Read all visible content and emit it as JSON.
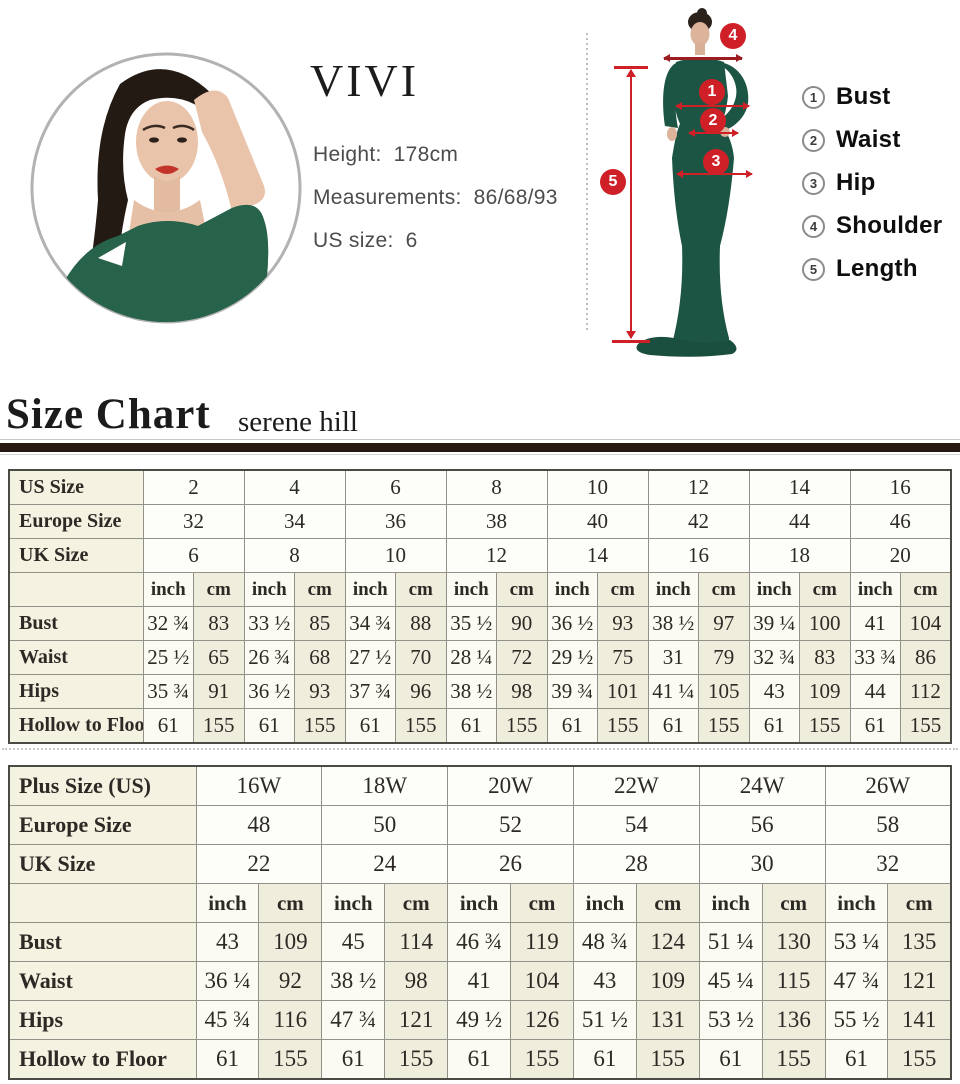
{
  "model_card": {
    "brand": "VIVI",
    "lines": [
      {
        "label": "Height:",
        "value": "178cm"
      },
      {
        "label": "Measurements:",
        "value": "86/68/93"
      },
      {
        "label": "US size:",
        "value": "6"
      }
    ]
  },
  "diagram": {
    "markers": {
      "bust": "1",
      "waist": "2",
      "hip": "3",
      "shoulder": "4",
      "length": "5"
    },
    "legend": [
      {
        "num": "1",
        "label": "Bust"
      },
      {
        "num": "2",
        "label": "Waist"
      },
      {
        "num": "3",
        "label": "Hip"
      },
      {
        "num": "4",
        "label": "Shoulder"
      },
      {
        "num": "5",
        "label": "Length"
      }
    ],
    "marker_color": "#cf2027",
    "dress_color": "#1d5545"
  },
  "heading": {
    "title": "Size Chart",
    "subtitle": "serene hill"
  },
  "tables": {
    "standard": {
      "size_rows": [
        {
          "label": "US Size",
          "values": [
            "2",
            "4",
            "6",
            "8",
            "10",
            "12",
            "14",
            "16"
          ]
        },
        {
          "label": "Europe Size",
          "values": [
            "32",
            "34",
            "36",
            "38",
            "40",
            "42",
            "44",
            "46"
          ]
        },
        {
          "label": "UK Size",
          "values": [
            "6",
            "8",
            "10",
            "12",
            "14",
            "16",
            "18",
            "20"
          ]
        }
      ],
      "units": {
        "inch": "inch",
        "cm": "cm"
      },
      "measurement_rows": [
        {
          "label": "Bust",
          "pairs": [
            [
              "32 ¾",
              "83"
            ],
            [
              "33 ½",
              "85"
            ],
            [
              "34 ¾",
              "88"
            ],
            [
              "35 ½",
              "90"
            ],
            [
              "36 ½",
              "93"
            ],
            [
              "38 ½",
              "97"
            ],
            [
              "39 ¼",
              "100"
            ],
            [
              "41",
              "104"
            ]
          ]
        },
        {
          "label": "Waist",
          "pairs": [
            [
              "25 ½",
              "65"
            ],
            [
              "26 ¾",
              "68"
            ],
            [
              "27 ½",
              "70"
            ],
            [
              "28 ¼",
              "72"
            ],
            [
              "29 ½",
              "75"
            ],
            [
              "31",
              "79"
            ],
            [
              "32 ¾",
              "83"
            ],
            [
              "33 ¾",
              "86"
            ]
          ]
        },
        {
          "label": "Hips",
          "pairs": [
            [
              "35 ¾",
              "91"
            ],
            [
              "36 ½",
              "93"
            ],
            [
              "37 ¾",
              "96"
            ],
            [
              "38 ½",
              "98"
            ],
            [
              "39 ¾",
              "101"
            ],
            [
              "41 ¼",
              "105"
            ],
            [
              "43",
              "109"
            ],
            [
              "44",
              "112"
            ]
          ]
        },
        {
          "label": "Hollow to Floor",
          "pairs": [
            [
              "61",
              "155"
            ],
            [
              "61",
              "155"
            ],
            [
              "61",
              "155"
            ],
            [
              "61",
              "155"
            ],
            [
              "61",
              "155"
            ],
            [
              "61",
              "155"
            ],
            [
              "61",
              "155"
            ],
            [
              "61",
              "155"
            ]
          ]
        }
      ]
    },
    "plus": {
      "size_rows": [
        {
          "label": "Plus Size (US)",
          "values": [
            "16W",
            "18W",
            "20W",
            "22W",
            "24W",
            "26W"
          ]
        },
        {
          "label": "Europe Size",
          "values": [
            "48",
            "50",
            "52",
            "54",
            "56",
            "58"
          ]
        },
        {
          "label": "UK Size",
          "values": [
            "22",
            "24",
            "26",
            "28",
            "30",
            "32"
          ]
        }
      ],
      "units": {
        "inch": "inch",
        "cm": "cm"
      },
      "measurement_rows": [
        {
          "label": "Bust",
          "pairs": [
            [
              "43",
              "109"
            ],
            [
              "45",
              "114"
            ],
            [
              "46 ¾",
              "119"
            ],
            [
              "48 ¾",
              "124"
            ],
            [
              "51 ¼",
              "130"
            ],
            [
              "53 ¼",
              "135"
            ]
          ]
        },
        {
          "label": "Waist",
          "pairs": [
            [
              "36 ¼",
              "92"
            ],
            [
              "38 ½",
              "98"
            ],
            [
              "41",
              "104"
            ],
            [
              "43",
              "109"
            ],
            [
              "45 ¼",
              "115"
            ],
            [
              "47 ¾",
              "121"
            ]
          ]
        },
        {
          "label": "Hips",
          "pairs": [
            [
              "45 ¾",
              "116"
            ],
            [
              "47 ¾",
              "121"
            ],
            [
              "49 ½",
              "126"
            ],
            [
              "51 ½",
              "131"
            ],
            [
              "53 ½",
              "136"
            ],
            [
              "55 ½",
              "141"
            ]
          ]
        },
        {
          "label": "Hollow to Floor",
          "pairs": [
            [
              "61",
              "155"
            ],
            [
              "61",
              "155"
            ],
            [
              "61",
              "155"
            ],
            [
              "61",
              "155"
            ],
            [
              "61",
              "155"
            ],
            [
              "61",
              "155"
            ]
          ]
        }
      ]
    }
  }
}
